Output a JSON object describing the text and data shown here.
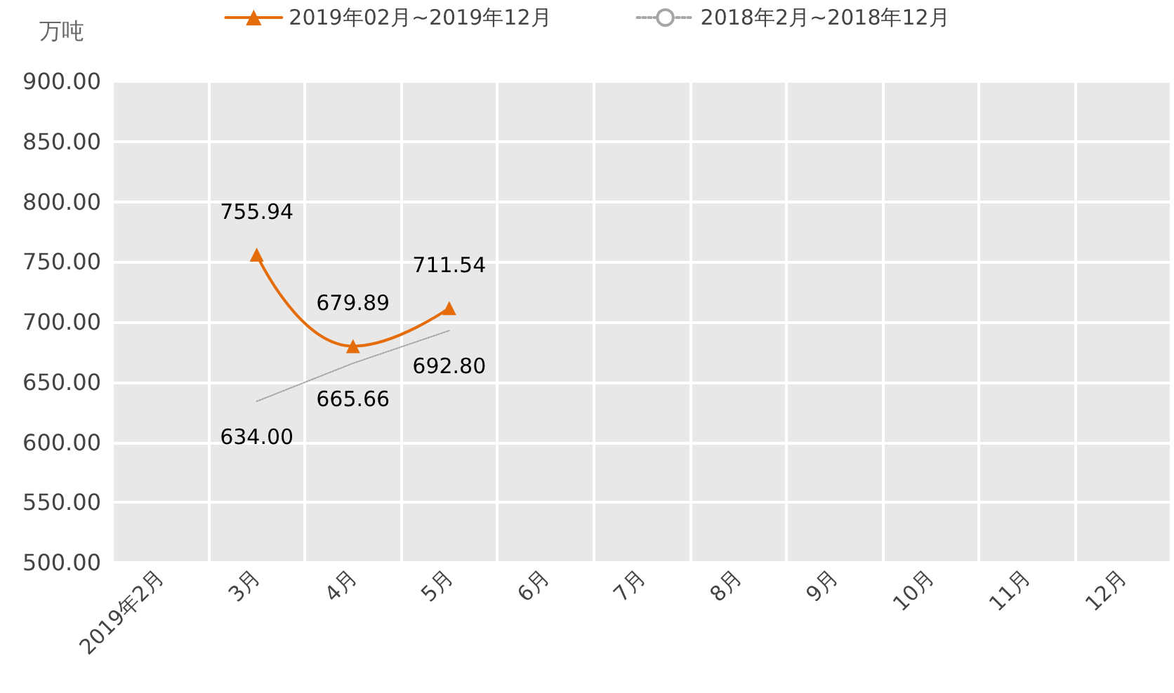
{
  "chart_data": {
    "type": "line",
    "ylabel": "万吨",
    "categories": [
      "2019年2月",
      "3月",
      "4月",
      "5月",
      "6月",
      "7月",
      "8月",
      "9月",
      "10月",
      "11月",
      "12月"
    ],
    "series": [
      {
        "name": "2019年02月~2019年12月",
        "color": "#e46c0a",
        "marker": "triangle",
        "line_style": "solid",
        "values": [
          null,
          755.94,
          679.89,
          711.54,
          null,
          null,
          null,
          null,
          null,
          null,
          null
        ],
        "value_labels": [
          null,
          "755.94",
          "679.89",
          "711.54",
          null,
          null,
          null,
          null,
          null,
          null,
          null
        ]
      },
      {
        "name": "2018年2月~2018年12月",
        "color": "#a6a6a6",
        "marker": "none",
        "line_style": "dotted",
        "values": [
          null,
          634.0,
          665.66,
          692.8,
          null,
          null,
          null,
          null,
          null,
          null,
          null
        ],
        "value_labels": [
          null,
          "634.00",
          "665.66",
          "692.80",
          null,
          null,
          null,
          null,
          null,
          null,
          null
        ]
      }
    ],
    "ylim": [
      500,
      900
    ],
    "yticks": [
      {
        "value": 500,
        "label": "500.00"
      },
      {
        "value": 550,
        "label": "550.00"
      },
      {
        "value": 600,
        "label": "600.00"
      },
      {
        "value": 650,
        "label": "650.00"
      },
      {
        "value": 700,
        "label": "700.00"
      },
      {
        "value": 750,
        "label": "750.00"
      },
      {
        "value": 800,
        "label": "800.00"
      },
      {
        "value": 850,
        "label": "850.00"
      },
      {
        "value": 900,
        "label": "900.00"
      }
    ],
    "grid": true,
    "legend": "top"
  }
}
